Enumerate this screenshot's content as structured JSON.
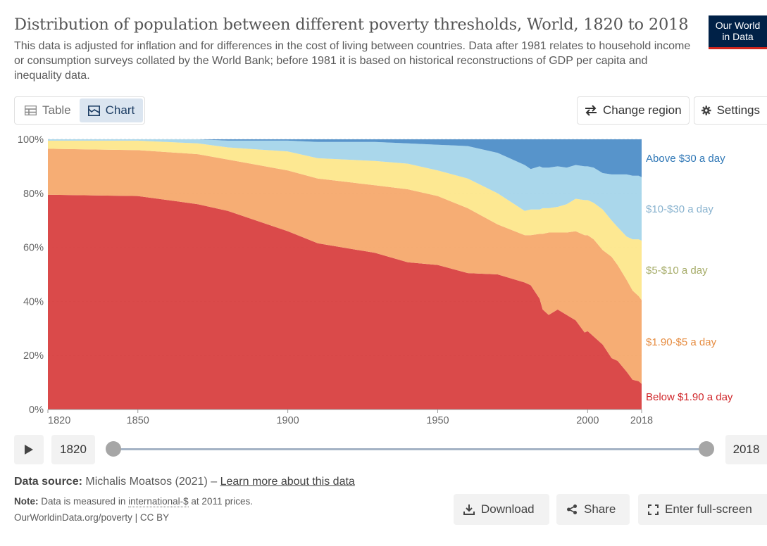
{
  "header": {
    "title": "Distribution of population between different poverty thresholds, World, 1820 to 2018",
    "subtitle": "This data is adjusted for inflation and for differences in the cost of living between countries. Data after 1981 relates to household income or consumption surveys collated by the World Bank; before 1981 it is based on historical reconstructions of GDP per capita and inequality data.",
    "logo_line1": "Our World",
    "logo_line2": "in Data"
  },
  "toolbar": {
    "table_label": "Table",
    "chart_label": "Chart",
    "change_region_label": "Change region",
    "settings_label": "Settings"
  },
  "timeline": {
    "start_year": "1820",
    "end_year": "2018"
  },
  "footer": {
    "source_label": "Data source:",
    "source_text": "Michalis Moatsos (2021) –",
    "learn_more": "Learn more about this data",
    "note_label": "Note:",
    "note_text_a": "Data is measured in",
    "note_link": "international-$",
    "note_text_b": "at 2011 prices.",
    "url": "OurWorldinData.org/poverty | CC BY"
  },
  "actions": {
    "download": "Download",
    "share": "Share",
    "fullscreen": "Enter full-screen"
  },
  "chart_data": {
    "type": "area",
    "stacked": true,
    "title": "Distribution of population between different poverty thresholds, World, 1820 to 2018",
    "xlim": [
      1820,
      2018
    ],
    "ylim": [
      0,
      100
    ],
    "y_ticks": [
      "0%",
      "20%",
      "40%",
      "60%",
      "80%",
      "100%"
    ],
    "x_ticks": [
      "1820",
      "1850",
      "1900",
      "1950",
      "2000",
      "2018"
    ],
    "x": [
      1820,
      1850,
      1870,
      1880,
      1900,
      1910,
      1929,
      1940,
      1950,
      1960,
      1970,
      1979,
      1981,
      1984,
      1985,
      1987,
      1990,
      1993,
      1996,
      1999,
      2000,
      2002,
      2005,
      2008,
      2010,
      2013,
      2015,
      2017,
      2018
    ],
    "series": [
      {
        "name": "Below $1.90 a day",
        "color": "#d73c3c",
        "values": [
          79.5,
          79,
          76,
          73.5,
          66,
          61.5,
          58,
          54.5,
          53.5,
          50.5,
          50,
          47,
          46,
          41,
          37,
          35,
          37,
          35,
          33,
          28.5,
          29,
          27,
          24,
          19,
          18,
          14,
          11,
          10.5,
          9.5
        ]
      },
      {
        "name": "$1.90-$5 a day",
        "color": "#f5a769",
        "values": [
          17,
          17,
          18.5,
          19,
          22.5,
          24,
          25,
          27,
          25.5,
          24,
          18.5,
          17.5,
          18.5,
          24,
          28,
          30.5,
          28.5,
          30.5,
          33,
          36,
          35.5,
          36,
          35,
          37.5,
          35.5,
          34,
          33,
          31.5,
          31
        ]
      },
      {
        "name": "$5-$10 a day",
        "color": "#fde68a",
        "values": [
          3,
          3.5,
          4,
          4.5,
          7,
          7.5,
          9,
          9.5,
          9.5,
          11,
          11.5,
          9,
          9.5,
          9,
          9.5,
          9,
          9.5,
          10.5,
          12,
          13,
          13,
          13.5,
          15,
          13.5,
          14,
          16,
          19,
          21,
          22
        ]
      },
      {
        "name": "$10-$30 a day",
        "color": "#a4d4ea",
        "values": [
          0.5,
          0.5,
          1.5,
          2.5,
          4,
          6,
          7,
          7.5,
          9.5,
          12,
          15,
          17,
          15,
          16,
          15,
          15,
          15,
          13.5,
          12.5,
          12.5,
          12.5,
          13,
          13.5,
          17,
          19.5,
          23,
          23.5,
          23.5,
          23.5
        ]
      },
      {
        "name": "Above $30 a day",
        "color": "#4a8cc7",
        "values": [
          0,
          0,
          0,
          0.5,
          0.5,
          1,
          1,
          1.5,
          2,
          2.5,
          5,
          9.5,
          11,
          10,
          10.5,
          10.5,
          10,
          10.5,
          10.5,
          10,
          10,
          10.5,
          12.5,
          13,
          13,
          13,
          13.5,
          13.5,
          14
        ]
      }
    ],
    "legend_placement": "right, aligned with series"
  }
}
